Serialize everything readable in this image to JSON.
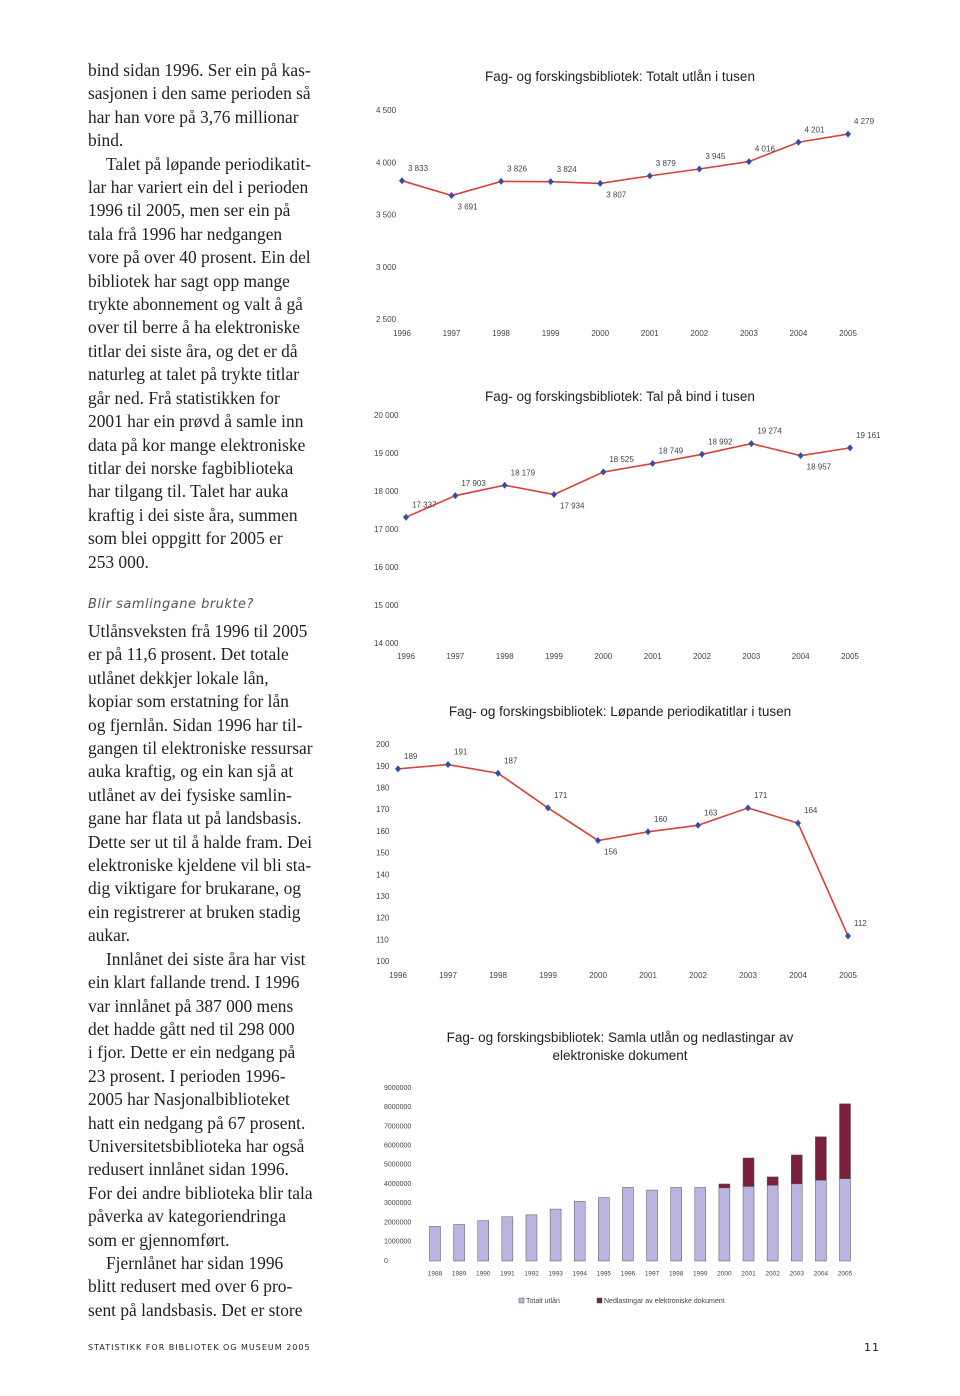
{
  "article": {
    "section_1": [
      [
        "bind sidan 1996. Ser ein på kas-",
        "sasjonen i den same perioden så",
        "har han vore på 3,76 millionar",
        "bind."
      ],
      [
        "Talet på løpande periodikatit-",
        "lar har variert ein del i perioden",
        "1996 til 2005, men ser ein på",
        "tala frå 1996 har nedgangen",
        "vore på over 40 prosent. Ein del",
        "bibliotek har sagt opp mange",
        "trykte abonnement og valt å gå",
        "over til berre å ha elektroniske",
        "titlar dei siste åra, og det er då",
        "naturleg at talet på trykte titlar",
        "går ned. Frå statistikken for",
        "2001 har ein prøvd å samle inn",
        "data på kor mange elektroniske",
        "titlar dei norske fagbiblioteka",
        "har tilgang til. Talet har auka",
        "kraftig i dei siste åra, summen",
        "som blei oppgitt for 2005 er",
        "253 000."
      ]
    ],
    "heading": "Blir samlingane brukte?",
    "section_2": [
      [
        "Utlånsveksten frå 1996 til 2005",
        "er på 11,6 prosent. Det totale",
        "utlånet dekkjer lokale lån,",
        "kopiar som erstatning for lån",
        "og fjernlån. Sidan 1996 har til-",
        "gangen til elektroniske ressursar",
        "auka kraftig, og ein kan sjå at",
        "utlånet av dei fysiske samlin-",
        "gane har flata ut på landsbasis.",
        "Dette ser ut til å halde fram. Dei",
        "elektroniske kjeldene vil bli sta-",
        "dig viktigare for brukarane, og",
        "ein registrerer at bruken stadig",
        "aukar."
      ],
      [
        "Innlånet dei siste åra har vist",
        "ein klart fallande trend. I 1996",
        "var innlånet på 387 000 mens",
        "det hadde gått ned til 298 000",
        "i fjor. Dette er ein nedgang på",
        "23 prosent. I perioden 1996-",
        "2005 har Nasjonalbiblioteket",
        "hatt ein nedgang på 67 prosent.",
        "Universitetsbiblioteka har også",
        "redusert innlånet sidan 1996.",
        "For dei andre biblioteka blir tala",
        "påverka av kategoriendringa",
        "som er gjennomført."
      ],
      [
        "Fjernlånet har sidan 1996",
        "blitt redusert med over 6 pro-",
        "sent på landsbasis. Det er store"
      ]
    ]
  },
  "chart_data": [
    {
      "type": "line",
      "title": "Fag- og forskingsbibliotek: Totalt utlån i tusen",
      "categories": [
        "1996",
        "1997",
        "1998",
        "1999",
        "2000",
        "2001",
        "2002",
        "2003",
        "2004",
        "2005"
      ],
      "values": [
        3833,
        3691,
        3826,
        3824,
        3807,
        3879,
        3945,
        4016,
        4201,
        4279
      ],
      "value_labels": [
        "3 833",
        "3 691",
        "3 826",
        "3 824",
        "3 807",
        "3 879",
        "3 945",
        "4 016",
        "4 201",
        "4 279"
      ],
      "ylim": [
        2500,
        4500
      ],
      "yticks": [
        {
          "value": 2500,
          "label": "2 500"
        },
        {
          "value": 3000,
          "label": "3 000"
        },
        {
          "value": 3500,
          "label": "3 500"
        },
        {
          "value": 4000,
          "label": "4 000"
        },
        {
          "value": 4500,
          "label": "4 500"
        }
      ],
      "line_color": "#d9423a",
      "marker_color": "#2f4fa8"
    },
    {
      "type": "line",
      "title": "Fag- og forskingsbibliotek: Tal på bind i tusen",
      "categories": [
        "1996",
        "1997",
        "1998",
        "1999",
        "2000",
        "2001",
        "2002",
        "2003",
        "2004",
        "2005"
      ],
      "values": [
        17337,
        17903,
        18179,
        17934,
        18525,
        18749,
        18992,
        19274,
        18957,
        19161
      ],
      "value_labels": [
        "17 337",
        "17 903",
        "18 179",
        "17 934",
        "18 525",
        "18 749",
        "18 992",
        "19 274",
        "18 957",
        "19 161"
      ],
      "ylim": [
        14000,
        20000
      ],
      "yticks": [
        {
          "value": 14000,
          "label": "14 000"
        },
        {
          "value": 15000,
          "label": "15 000"
        },
        {
          "value": 16000,
          "label": "16 000"
        },
        {
          "value": 17000,
          "label": "17 000"
        },
        {
          "value": 18000,
          "label": "18 000"
        },
        {
          "value": 19000,
          "label": "19 000"
        },
        {
          "value": 20000,
          "label": "20 000"
        }
      ],
      "line_color": "#d9423a",
      "marker_color": "#2f4fa8"
    },
    {
      "type": "line",
      "title": "Fag- og forskingsbibliotek: Løpande periodikatitlar i tusen",
      "categories": [
        "1996",
        "1997",
        "1998",
        "1999",
        "2000",
        "2001",
        "2002",
        "2003",
        "2004",
        "2005"
      ],
      "values": [
        189,
        191,
        187,
        171,
        156,
        160,
        163,
        171,
        164,
        112
      ],
      "ylim": [
        100,
        200
      ],
      "yticks": [
        100,
        110,
        120,
        130,
        140,
        150,
        160,
        170,
        180,
        190,
        200
      ],
      "line_color": "#d9423a",
      "marker_color": "#2f4fa8"
    },
    {
      "type": "stacked_bar",
      "title": "Fag- og forskingsbibliotek: Samla utlån og nedlastingar av elektroniske dokument",
      "categories": [
        "1988",
        "1989",
        "1990",
        "1991",
        "1992",
        "1993",
        "1994",
        "1995",
        "1996",
        "1997",
        "1998",
        "1999",
        "2000",
        "2001",
        "2002",
        "2003",
        "2004",
        "2005"
      ],
      "series": [
        {
          "name": "Totalt utlån",
          "color": "#bcb4e0",
          "values": [
            1800000,
            1900000,
            2100000,
            2300000,
            2400000,
            2700000,
            3100000,
            3300000,
            3833000,
            3691000,
            3826000,
            3824000,
            3807000,
            3879000,
            3945000,
            4016000,
            4201000,
            4279000
          ]
        },
        {
          "name": "Nedlastingar av elektroniske dokument",
          "color": "#7a1f3d",
          "values": [
            null,
            null,
            null,
            null,
            null,
            null,
            null,
            null,
            null,
            null,
            null,
            null,
            200000,
            1480000,
            430000,
            1500000,
            2260000,
            3900000
          ]
        }
      ],
      "ylim": [
        0,
        9000000
      ],
      "yticks": [
        0,
        1000000,
        2000000,
        3000000,
        4000000,
        5000000,
        6000000,
        7000000,
        8000000,
        9000000
      ],
      "legend": "bottom"
    }
  ],
  "footer": {
    "publication": "STATISTIKK FOR BIBLIOTEK OG MUSEUM 2005",
    "page_number": "11"
  }
}
